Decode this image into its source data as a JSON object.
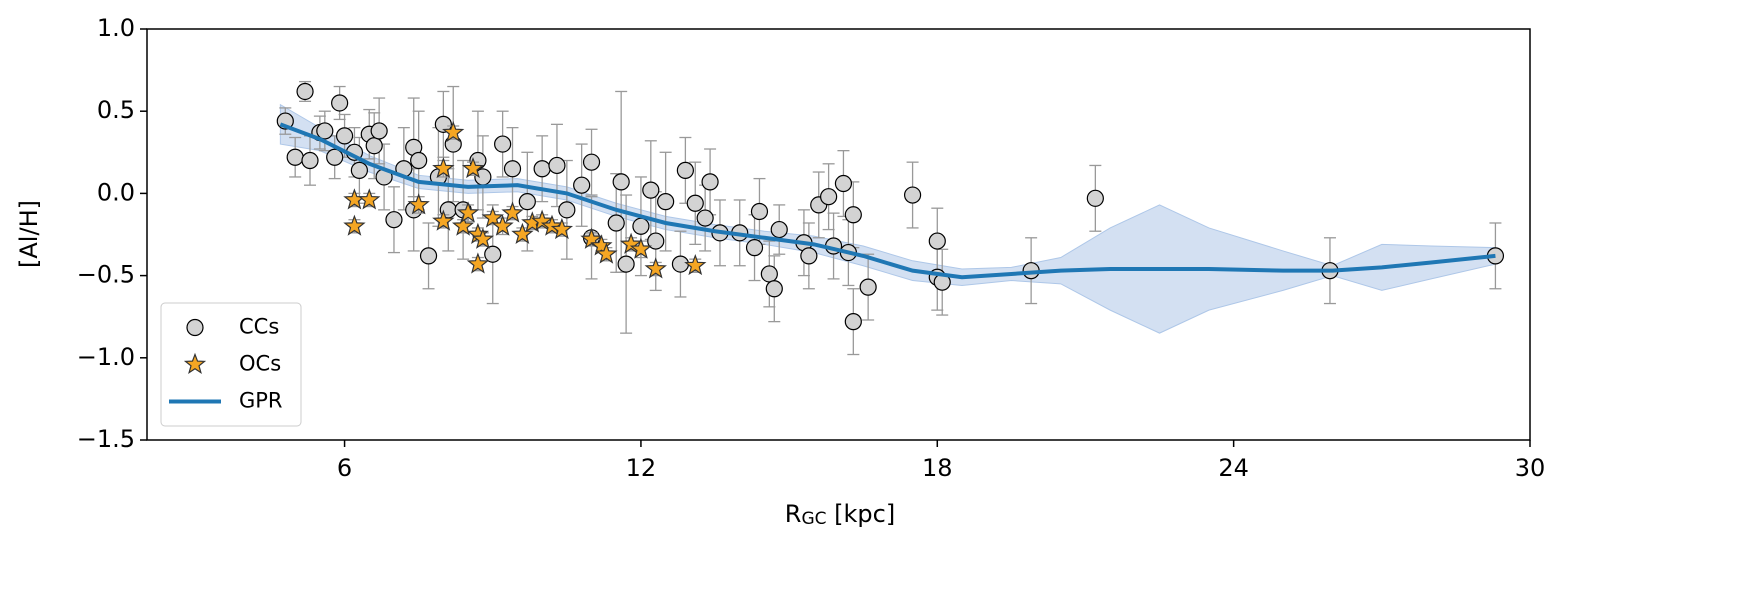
{
  "chart_data": {
    "type": "scatter",
    "xlabel": {
      "main": "R",
      "sub": "GC",
      "rest": " [kpc]"
    },
    "ylabel": "[Al/H]",
    "xlim": [
      2,
      30
    ],
    "ylim": [
      -1.5,
      1.0
    ],
    "xticks": [
      6,
      12,
      18,
      24,
      30
    ],
    "yticks": [
      {
        "value": -1.5,
        "label": "−1.5"
      },
      {
        "value": -1.0,
        "label": "−1.0"
      },
      {
        "value": -0.5,
        "label": "−0.5"
      },
      {
        "value": 0.0,
        "label": "0.0"
      },
      {
        "value": 0.5,
        "label": "0.5"
      },
      {
        "value": 1.0,
        "label": "1.0"
      }
    ],
    "grid": false,
    "legend": "lower left",
    "series": [
      {
        "name": "CCs",
        "marker": "circle",
        "color": "#d3d3d3",
        "edgecolor": "#000000",
        "errcolor": "#999999",
        "x": [
          4.8,
          5.0,
          5.2,
          5.3,
          5.5,
          5.6,
          5.8,
          5.9,
          6.0,
          6.2,
          6.3,
          6.5,
          6.6,
          6.7,
          6.8,
          7.0,
          7.2,
          7.4,
          7.4,
          7.5,
          7.7,
          7.9,
          8.0,
          8.1,
          8.2,
          8.4,
          8.7,
          8.8,
          9.0,
          9.2,
          9.4,
          9.7,
          10.0,
          10.3,
          10.5,
          10.8,
          11.0,
          11.0,
          11.5,
          11.6,
          11.7,
          12.0,
          12.2,
          12.3,
          12.5,
          12.8,
          12.9,
          13.1,
          13.3,
          13.4,
          13.6,
          14.0,
          14.3,
          14.4,
          14.6,
          14.7,
          14.8,
          15.3,
          15.4,
          15.6,
          15.8,
          15.9,
          16.1,
          16.2,
          16.3,
          16.3,
          16.6,
          17.5,
          18.0,
          18.0,
          18.1,
          19.9,
          21.2,
          25.95,
          29.3
        ],
        "values": [
          0.44,
          0.22,
          0.62,
          0.2,
          0.37,
          0.38,
          0.22,
          0.55,
          0.35,
          0.25,
          0.14,
          0.36,
          0.29,
          0.38,
          0.1,
          -0.16,
          0.15,
          0.28,
          -0.1,
          0.2,
          -0.38,
          0.1,
          0.42,
          -0.1,
          0.3,
          -0.1,
          0.2,
          0.1,
          -0.37,
          0.3,
          0.15,
          -0.05,
          0.15,
          0.17,
          -0.1,
          0.05,
          0.19,
          -0.27,
          -0.18,
          0.07,
          -0.43,
          -0.2,
          0.02,
          -0.29,
          -0.05,
          -0.43,
          0.14,
          -0.06,
          -0.15,
          0.07,
          -0.24,
          -0.24,
          -0.33,
          -0.11,
          -0.49,
          -0.58,
          -0.22,
          -0.3,
          -0.38,
          -0.07,
          -0.02,
          -0.32,
          0.06,
          -0.36,
          -0.78,
          -0.13,
          -0.57,
          -0.01,
          -0.29,
          -0.51,
          -0.54,
          -0.47,
          -0.03,
          -0.47,
          -0.38
        ],
        "errors": [
          0.08,
          0.12,
          0.06,
          0.15,
          0.1,
          0.12,
          0.13,
          0.1,
          0.13,
          0.15,
          0.2,
          0.15,
          0.2,
          0.2,
          0.2,
          0.2,
          0.25,
          0.3,
          0.25,
          0.3,
          0.2,
          0.3,
          0.2,
          0.25,
          0.35,
          0.3,
          0.3,
          0.25,
          0.3,
          0.2,
          0.25,
          0.3,
          0.2,
          0.25,
          0.3,
          0.25,
          0.2,
          0.25,
          0.3,
          0.55,
          0.42,
          0.3,
          0.3,
          0.3,
          0.3,
          0.2,
          0.2,
          0.25,
          0.2,
          0.2,
          0.2,
          0.2,
          0.2,
          0.2,
          0.2,
          0.2,
          0.15,
          0.2,
          0.2,
          0.2,
          0.2,
          0.2,
          0.2,
          0.2,
          0.2,
          0.2,
          0.2,
          0.2,
          0.2,
          0.2,
          0.2,
          0.2,
          0.2,
          0.2,
          0.2
        ]
      },
      {
        "name": "OCs",
        "marker": "star",
        "color": "#f5a623",
        "edgecolor": "#333333",
        "errcolor": "#999999",
        "x": [
          6.2,
          6.2,
          6.5,
          7.5,
          8.0,
          8.0,
          8.2,
          8.4,
          8.5,
          8.6,
          8.7,
          8.7,
          8.8,
          9.0,
          9.2,
          9.4,
          9.6,
          9.8,
          10.0,
          10.2,
          10.4,
          11.0,
          11.2,
          11.3,
          11.8,
          12.0,
          12.3,
          13.1
        ],
        "values": [
          -0.2,
          -0.04,
          -0.04,
          -0.07,
          -0.17,
          0.15,
          0.37,
          -0.2,
          -0.12,
          0.15,
          -0.25,
          -0.43,
          -0.28,
          -0.15,
          -0.2,
          -0.12,
          -0.25,
          -0.18,
          -0.17,
          -0.2,
          -0.22,
          -0.28,
          -0.32,
          -0.37,
          -0.31,
          -0.34,
          -0.46,
          -0.44
        ],
        "errors": [
          0.04,
          0.04,
          0.04,
          0.05,
          0.04,
          0.05,
          0.04,
          0.04,
          0.05,
          0.04,
          0.04,
          0.04,
          0.04,
          0.04,
          0.05,
          0.04,
          0.04,
          0.04,
          0.04,
          0.04,
          0.04,
          0.04,
          0.04,
          0.04,
          0.04,
          0.05,
          0.04,
          0.04
        ]
      },
      {
        "name": "GPR",
        "marker": "line",
        "color": "#1f77b4",
        "bandcolor": "#aec7e8",
        "x": [
          4.7,
          5.5,
          6.5,
          7.5,
          8.5,
          9.5,
          10.5,
          11.5,
          12.5,
          13.5,
          14.5,
          15.5,
          16.5,
          17.5,
          18.5,
          19.5,
          20.5,
          21.5,
          22.5,
          23.5,
          25,
          26,
          27,
          28,
          29.3
        ],
        "values": [
          0.42,
          0.33,
          0.18,
          0.07,
          0.04,
          0.05,
          0.0,
          -0.1,
          -0.18,
          -0.23,
          -0.27,
          -0.31,
          -0.38,
          -0.47,
          -0.51,
          -0.49,
          -0.47,
          -0.46,
          -0.46,
          -0.46,
          -0.47,
          -0.47,
          -0.45,
          -0.42,
          -0.38
        ],
        "lower": [
          0.3,
          0.26,
          0.13,
          0.03,
          0.0,
          0.01,
          -0.04,
          -0.14,
          -0.22,
          -0.27,
          -0.31,
          -0.36,
          -0.44,
          -0.53,
          -0.56,
          -0.53,
          -0.55,
          -0.71,
          -0.85,
          -0.71,
          -0.59,
          -0.5,
          -0.59,
          -0.52,
          -0.43
        ],
        "upper": [
          0.54,
          0.4,
          0.23,
          0.11,
          0.08,
          0.09,
          0.04,
          -0.06,
          -0.14,
          -0.19,
          -0.23,
          -0.26,
          -0.32,
          -0.41,
          -0.46,
          -0.45,
          -0.39,
          -0.21,
          -0.07,
          -0.21,
          -0.35,
          -0.44,
          -0.31,
          -0.32,
          -0.33
        ]
      }
    ]
  }
}
